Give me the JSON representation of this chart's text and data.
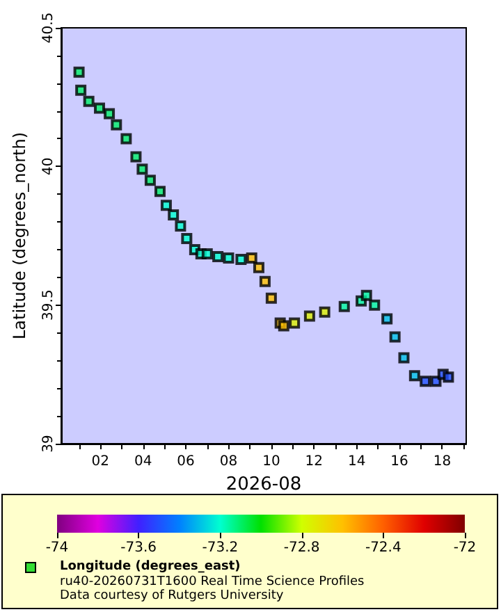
{
  "chart_data": {
    "type": "scatter",
    "xlabel": "2026-08",
    "ylabel": "Latitude (degrees_north)",
    "clabel": "Longitude (degrees_east)",
    "annotations": [
      "ru40-20260731T1600 Real Time Science Profiles",
      "Data courtesy of Rutgers University"
    ],
    "x": [
      "2026-08-01T00:00",
      "2026-08-01T02:00",
      "2026-08-01T11:00",
      "2026-08-01T23:00",
      "2026-08-02T10:00",
      "2026-08-02T18:00",
      "2026-08-03T05:00",
      "2026-08-03T16:00",
      "2026-08-03T23:00",
      "2026-08-04T08:00",
      "2026-08-04T19:00",
      "2026-08-05T02:00",
      "2026-08-05T10:00",
      "2026-08-05T18:00",
      "2026-08-06T01:00",
      "2026-08-06T10:00",
      "2026-08-06T17:00",
      "2026-08-07T00:00",
      "2026-08-07T12:00",
      "2026-08-08T00:00",
      "2026-08-08T14:00",
      "2026-08-09T02:00",
      "2026-08-09T10:00",
      "2026-08-09T17:00",
      "2026-08-10T00:00",
      "2026-08-10T10:00",
      "2026-08-10T14:00",
      "2026-08-11T02:00",
      "2026-08-11T19:00",
      "2026-08-12T12:00",
      "2026-08-13T10:00",
      "2026-08-14T05:00",
      "2026-08-14T11:00",
      "2026-08-14T20:00",
      "2026-08-15T10:00",
      "2026-08-15T19:00",
      "2026-08-16T05:00",
      "2026-08-16T17:00",
      "2026-08-17T05:00",
      "2026-08-17T17:00",
      "2026-08-18T01:00",
      "2026-08-18T07:00"
    ],
    "values": [
      40.34,
      40.275,
      40.235,
      40.21,
      40.19,
      40.15,
      40.1,
      40.035,
      39.99,
      39.95,
      39.91,
      39.86,
      39.825,
      39.785,
      39.74,
      39.7,
      39.685,
      39.685,
      39.675,
      39.67,
      39.665,
      39.67,
      39.635,
      39.585,
      39.525,
      39.435,
      39.425,
      39.435,
      39.46,
      39.475,
      39.495,
      39.515,
      39.535,
      39.5,
      39.45,
      39.385,
      39.31,
      39.245,
      39.225,
      39.225,
      39.25,
      39.24
    ],
    "cvalues": [
      -73.1,
      -73.1,
      -73.1,
      -73.1,
      -73.1,
      -73.1,
      -73.1,
      -73.1,
      -73.1,
      -73.1,
      -73.1,
      -73.2,
      -73.2,
      -73.2,
      -73.2,
      -73.2,
      -73.2,
      -73.2,
      -73.2,
      -73.2,
      -73.2,
      -72.6,
      -72.6,
      -72.6,
      -72.6,
      -72.6,
      -72.6,
      -72.75,
      -72.75,
      -72.75,
      -73.15,
      -73.15,
      -73.15,
      -73.15,
      -73.3,
      -73.3,
      -73.3,
      -73.3,
      -73.5,
      -73.5,
      -73.5,
      -73.5
    ],
    "xlim": [
      "2026-07-31T04:00",
      "2026-08-19T03:00"
    ],
    "xticks": [
      {
        "value": "2026-08-01",
        "label": null
      },
      {
        "value": "2026-08-02",
        "label": "02"
      },
      {
        "value": "2026-08-03",
        "label": null
      },
      {
        "value": "2026-08-04",
        "label": "04"
      },
      {
        "value": "2026-08-05",
        "label": null
      },
      {
        "value": "2026-08-06",
        "label": "06"
      },
      {
        "value": "2026-08-07",
        "label": null
      },
      {
        "value": "2026-08-08",
        "label": "08"
      },
      {
        "value": "2026-08-09",
        "label": null
      },
      {
        "value": "2026-08-10",
        "label": "10"
      },
      {
        "value": "2026-08-11",
        "label": null
      },
      {
        "value": "2026-08-12",
        "label": "12"
      },
      {
        "value": "2026-08-13",
        "label": null
      },
      {
        "value": "2026-08-14",
        "label": "14"
      },
      {
        "value": "2026-08-15",
        "label": null
      },
      {
        "value": "2026-08-16",
        "label": "16"
      },
      {
        "value": "2026-08-17",
        "label": null
      },
      {
        "value": "2026-08-18",
        "label": "18"
      },
      {
        "value": "2026-08-19",
        "label": null
      }
    ],
    "ylim": [
      39,
      40.5
    ],
    "yticks": [
      39,
      39.5,
      40,
      40.5
    ],
    "clim": [
      -74,
      -72
    ],
    "cticks": [
      -74,
      -73.6,
      -73.2,
      -72.8,
      -72.4,
      -72
    ],
    "marker": "square",
    "color": "#000000",
    "grid": false
  }
}
